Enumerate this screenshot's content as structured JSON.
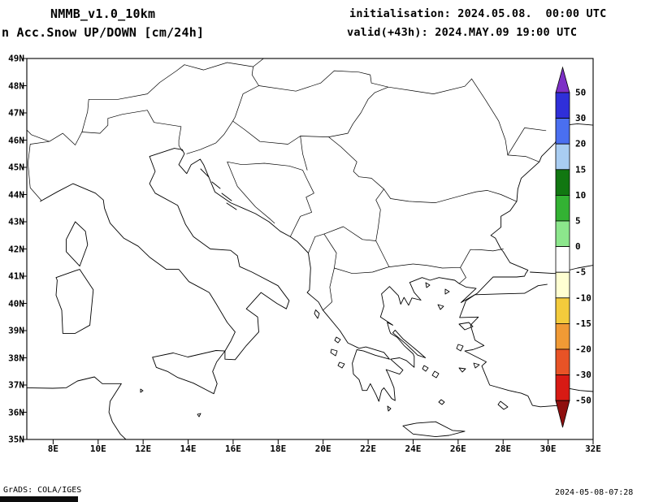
{
  "header": {
    "model": "NMMB_v1.0_10km",
    "product": "n Acc.Snow UP/DOWN [cm/24h]",
    "init_label": "initialisation: 2024.05.08.  00:00 UTC",
    "valid_label": "valid(+43h): 2024.MAY.09 19:00 UTC"
  },
  "map": {
    "lat_labels": [
      "49N",
      "48N",
      "47N",
      "46N",
      "45N",
      "44N",
      "43N",
      "42N",
      "41N",
      "40N",
      "39N",
      "38N",
      "37N",
      "36N",
      "35N"
    ],
    "lon_labels": [
      "8E",
      "10E",
      "12E",
      "14E",
      "16E",
      "18E",
      "20E",
      "22E",
      "24E",
      "26E",
      "28E",
      "30E",
      "32E"
    ]
  },
  "colorbar": {
    "unit": "cm/24h",
    "labels": [
      "50",
      "30",
      "20",
      "15",
      "10",
      "5",
      "0",
      "-5",
      "-10",
      "-15",
      "-20",
      "-30",
      "-50"
    ],
    "top_arrow_color": "#7d2fc6",
    "bottom_arrow_color": "#8f0f0f",
    "segment_colors": [
      "#2f2fd9",
      "#4a6ff0",
      "#a9cdf2",
      "#117711",
      "#33b233",
      "#8ce68c",
      "#ffffff",
      "#ffffd2",
      "#f3cb3c",
      "#f09a35",
      "#e85326",
      "#d81a14"
    ]
  },
  "footer": {
    "credit": "GrADS: COLA/IGES",
    "timestamp": "2024-05-08-07:28"
  }
}
